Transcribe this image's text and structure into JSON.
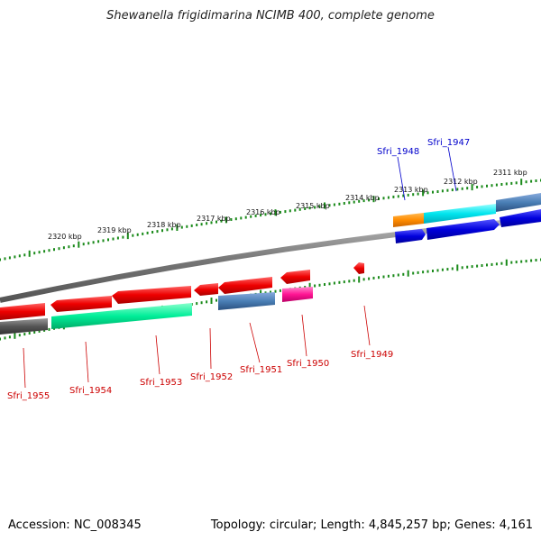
{
  "title": "Shewanella frigidimarina NCIMB 400, complete genome",
  "footer": {
    "accession": "Accession: NC_008345",
    "summary": "Topology: circular; Length: 4,845,257 bp; Genes: 4,161"
  },
  "scale_labels": [
    "2320 kbp",
    "2319 kbp",
    "2318 kbp",
    "2317 kbp",
    "2316 kbp",
    "2315 kbp",
    "2314 kbp",
    "2313 kbp",
    "2312 kbp",
    "2311 kbp"
  ],
  "gene_labels_top": [
    "Sfri_1948",
    "Sfri_1947"
  ],
  "gene_labels_bottom": [
    "Sfri_1955",
    "Sfri_1954",
    "Sfri_1953",
    "Sfri_1952",
    "Sfri_1951",
    "Sfri_1950",
    "Sfri_1949"
  ],
  "colors": {
    "forward_gene": "#ee0000",
    "cds_red": "#ff0000",
    "blue": "#0000dd",
    "cyan": "#00e5ee",
    "steel": "#4a7fb5",
    "green": "#00ee99",
    "magenta": "#ff1493",
    "orange": "#ff8c00",
    "gray": "#555555",
    "tick": "#1a8a1a",
    "top_label": "#0000cc",
    "bottom_label": "#cc0000"
  }
}
